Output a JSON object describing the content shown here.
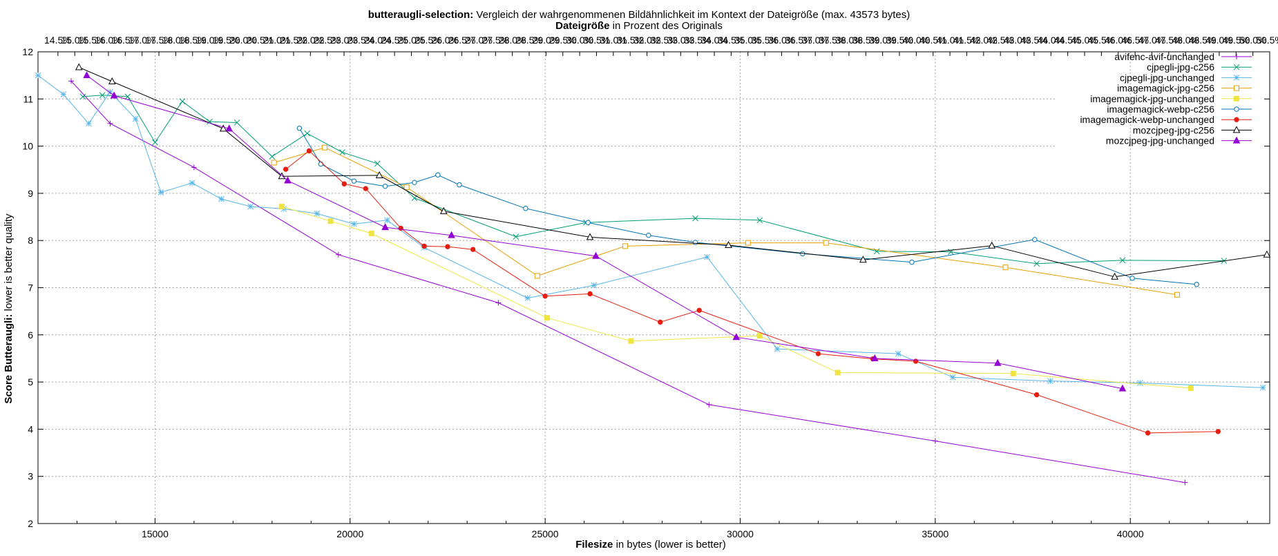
{
  "chart_data": {
    "type": "line",
    "title_bold": "butteraugli-selection:",
    "title_rest": " Vergleich der wahrgenommenen Bildähnlichkeit im Kontext der Dateigröße (max. 43573 bytes)",
    "subtitle_bold": "Dateigröße",
    "subtitle_rest": " in Prozent des Originals",
    "xlabel_bold": "Filesize",
    "xlabel_rest": " in bytes (lower is better)",
    "ylabel_bold": "Score Butteraugli:",
    "ylabel_rest": " lower is better quality",
    "xlim": [
      12000,
      43573
    ],
    "ylim": [
      2,
      12
    ],
    "x_ticks": [
      15000,
      20000,
      25000,
      30000,
      35000,
      40000
    ],
    "y_ticks": [
      2,
      3,
      4,
      5,
      6,
      7,
      8,
      9,
      10,
      11,
      12
    ],
    "x2_tick_labels": [
      "14.5%",
      "15.0%",
      "15.5%",
      "16.0%",
      "16.5%",
      "17.0%",
      "17.5%",
      "18.0%",
      "18.5%",
      "19.0%",
      "19.5%",
      "20.0%",
      "20.5%",
      "21.0%",
      "21.5%",
      "22.0%",
      "22.5%",
      "23.0%",
      "23.5%",
      "24.0%",
      "24.5%",
      "25.0%",
      "25.5%",
      "26.0%",
      "26.5%",
      "27.0%",
      "27.5%",
      "28.0%",
      "28.5%",
      "29.0%",
      "29.5%",
      "30.0%",
      "30.5%",
      "31.0%",
      "31.5%",
      "32.0%",
      "32.5%",
      "33.0%",
      "33.5%",
      "34.0%",
      "34.5%",
      "35.0%",
      "35.5%",
      "36.0%",
      "36.5%",
      "37.0%",
      "37.5%",
      "38.0%",
      "38.5%",
      "39.0%",
      "39.5%",
      "40.0%",
      "40.5%",
      "41.0%",
      "41.5%",
      "42.0%",
      "42.5%",
      "43.0%",
      "43.5%",
      "44.0%",
      "44.5%",
      "45.0%",
      "45.5%",
      "46.0%",
      "46.5%",
      "47.0%",
      "47.5%",
      "48.0%",
      "48.5%",
      "49.0%",
      "49.5%",
      "50.0%",
      "50.5%"
    ],
    "grid": true,
    "legend_position": "top-right",
    "series": [
      {
        "name": "avifenc-avif-unchanged",
        "color": "#9400d3",
        "marker": "plus",
        "points": [
          [
            12850,
            11.38
          ],
          [
            13850,
            10.48
          ],
          [
            16000,
            9.55
          ],
          [
            19700,
            7.7
          ],
          [
            23800,
            6.68
          ],
          [
            29200,
            4.52
          ],
          [
            35000,
            3.75
          ],
          [
            41400,
            2.87
          ]
        ]
      },
      {
        "name": "cjpegli-jpg-c256",
        "color": "#009e73",
        "marker": "cross",
        "points": [
          [
            13150,
            11.05
          ],
          [
            13650,
            11.08
          ],
          [
            14300,
            11.05
          ],
          [
            15000,
            10.08
          ],
          [
            15700,
            10.95
          ],
          [
            16400,
            10.52
          ],
          [
            17100,
            10.5
          ],
          [
            18000,
            9.78
          ],
          [
            18900,
            10.27
          ],
          [
            19800,
            9.87
          ],
          [
            20700,
            9.63
          ],
          [
            21650,
            8.9
          ],
          [
            24250,
            8.08
          ],
          [
            26050,
            8.38
          ],
          [
            28850,
            8.47
          ],
          [
            30500,
            8.43
          ],
          [
            33500,
            7.77
          ],
          [
            35400,
            7.76
          ],
          [
            37600,
            7.51
          ],
          [
            39800,
            7.58
          ],
          [
            42400,
            7.57
          ]
        ]
      },
      {
        "name": "cjpegli-jpg-unchanged",
        "color": "#56b4e9",
        "marker": "star",
        "points": [
          [
            12000,
            11.5
          ],
          [
            12650,
            11.1
          ],
          [
            13300,
            10.48
          ],
          [
            13850,
            11.15
          ],
          [
            14500,
            10.58
          ],
          [
            15150,
            9.02
          ],
          [
            15950,
            9.22
          ],
          [
            16700,
            8.88
          ],
          [
            17450,
            8.72
          ],
          [
            18300,
            8.67
          ],
          [
            19150,
            8.57
          ],
          [
            20100,
            8.35
          ],
          [
            20950,
            8.43
          ],
          [
            21900,
            7.85
          ],
          [
            24550,
            6.78
          ],
          [
            26250,
            7.05
          ],
          [
            29150,
            7.65
          ],
          [
            30950,
            5.7
          ],
          [
            34050,
            5.6
          ],
          [
            35450,
            5.1
          ],
          [
            37950,
            5.02
          ],
          [
            40250,
            4.98
          ],
          [
            43400,
            4.88
          ]
        ]
      },
      {
        "name": "imagemagick-jpg-c256",
        "color": "#e69f00",
        "marker": "square",
        "points": [
          [
            18050,
            9.65
          ],
          [
            19350,
            9.97
          ],
          [
            21450,
            9.13
          ],
          [
            24800,
            7.25
          ],
          [
            27050,
            7.88
          ],
          [
            30200,
            7.95
          ],
          [
            32200,
            7.95
          ],
          [
            36800,
            7.43
          ],
          [
            41200,
            6.85
          ]
        ]
      },
      {
        "name": "imagemagick-jpg-unchanged",
        "color": "#f0e442",
        "marker": "filled-square",
        "points": [
          [
            18250,
            8.72
          ],
          [
            19500,
            8.41
          ],
          [
            20550,
            8.15
          ],
          [
            25050,
            6.36
          ],
          [
            27200,
            5.87
          ],
          [
            30500,
            5.98
          ],
          [
            32500,
            5.2
          ],
          [
            37000,
            5.18
          ],
          [
            41550,
            4.87
          ]
        ]
      },
      {
        "name": "imagemagick-webp-c256",
        "color": "#0072b2",
        "marker": "circle",
        "points": [
          [
            18700,
            10.38
          ],
          [
            19250,
            9.62
          ],
          [
            20100,
            9.26
          ],
          [
            20900,
            9.15
          ],
          [
            21650,
            9.23
          ],
          [
            22250,
            9.39
          ],
          [
            22800,
            9.18
          ],
          [
            24500,
            8.68
          ],
          [
            26100,
            8.38
          ],
          [
            27650,
            8.11
          ],
          [
            28850,
            7.96
          ],
          [
            31600,
            7.72
          ],
          [
            34400,
            7.54
          ],
          [
            37550,
            8.02
          ],
          [
            40050,
            7.2
          ],
          [
            41700,
            7.07
          ]
        ]
      },
      {
        "name": "imagemagick-webp-unchanged",
        "color": "#e51e10",
        "marker": "filled-circle",
        "points": [
          [
            18350,
            9.51
          ],
          [
            18950,
            9.9
          ],
          [
            19850,
            9.2
          ],
          [
            20400,
            9.1
          ],
          [
            21300,
            8.26
          ],
          [
            21900,
            7.88
          ],
          [
            22500,
            7.87
          ],
          [
            23150,
            7.81
          ],
          [
            25000,
            6.82
          ],
          [
            26150,
            6.87
          ],
          [
            27950,
            6.27
          ],
          [
            28950,
            6.52
          ],
          [
            32000,
            5.6
          ],
          [
            33400,
            5.49
          ],
          [
            34500,
            5.44
          ],
          [
            37600,
            4.73
          ],
          [
            40450,
            3.92
          ],
          [
            42250,
            3.95
          ]
        ]
      },
      {
        "name": "mozcjpeg-jpg-c256",
        "color": "#000000",
        "marker": "triangle",
        "points": [
          [
            13050,
            11.67
          ],
          [
            13900,
            11.37
          ],
          [
            16750,
            10.37
          ],
          [
            18250,
            9.36
          ],
          [
            20750,
            9.38
          ],
          [
            22400,
            8.62
          ],
          [
            26150,
            8.07
          ],
          [
            29700,
            7.9
          ],
          [
            33150,
            7.59
          ],
          [
            36450,
            7.89
          ],
          [
            39600,
            7.23
          ],
          [
            43500,
            7.7
          ]
        ]
      },
      {
        "name": "mozcjpeg-jpg-unchanged",
        "color": "#9400d3",
        "marker": "filled-triangle",
        "points": [
          [
            13250,
            11.5
          ],
          [
            13950,
            11.07
          ],
          [
            16900,
            10.37
          ],
          [
            18400,
            9.27
          ],
          [
            20900,
            8.28
          ],
          [
            22600,
            8.11
          ],
          [
            26300,
            7.67
          ],
          [
            29900,
            5.95
          ],
          [
            33450,
            5.5
          ],
          [
            36600,
            5.4
          ],
          [
            39800,
            4.86
          ]
        ]
      }
    ]
  }
}
